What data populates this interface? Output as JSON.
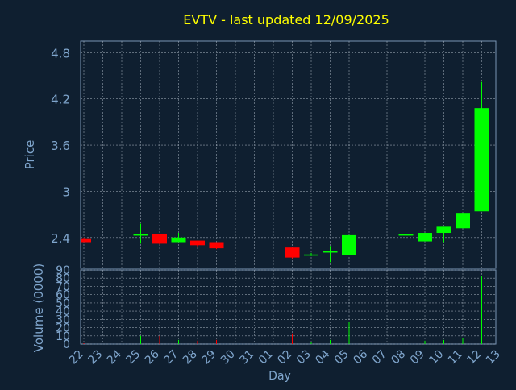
{
  "colors": {
    "background": "#0f1f30",
    "plot_background": "#0f1f30",
    "axis": "#7a95b5",
    "grid": "#c8d4e0",
    "title": "#ffff00",
    "label": "#7fa5cc",
    "up": "#00ff00",
    "down": "#ff0000"
  },
  "chart_data": {
    "type": "candlestick",
    "title": "EVTV - last updated 12/09/2025",
    "xlabel": "Day",
    "price_panel": {
      "ylabel": "Price",
      "ylim": [
        2.0,
        4.95
      ],
      "yticks": [
        "2.4",
        "3",
        "3.6",
        "4.2",
        "4.8"
      ],
      "grid": true
    },
    "volume_panel": {
      "ylabel": "Volume (0000)",
      "ylim": [
        0,
        90
      ],
      "yticks": [
        "0",
        "10",
        "20",
        "30",
        "40",
        "50",
        "60",
        "70",
        "80",
        "90"
      ],
      "grid": true
    },
    "x_tick_labels": [
      "22",
      "23",
      "24",
      "25",
      "26",
      "27",
      "28",
      "29",
      "30",
      "31",
      "01",
      "02",
      "03",
      "04",
      "05",
      "06",
      "07",
      "08",
      "09",
      "10",
      "11",
      "12",
      "13"
    ],
    "candles": [
      {
        "x": "22",
        "open": 2.39,
        "high": 2.4,
        "low": 2.34,
        "close": 2.34,
        "volume": 1
      },
      {
        "x": "25",
        "open": 2.44,
        "high": 2.58,
        "low": 2.32,
        "close": 2.44,
        "volume": 10
      },
      {
        "x": "26",
        "open": 2.45,
        "high": 2.45,
        "low": 2.31,
        "close": 2.32,
        "volume": 10
      },
      {
        "x": "27",
        "open": 2.34,
        "high": 2.46,
        "low": 2.34,
        "close": 2.4,
        "volume": 5
      },
      {
        "x": "28",
        "open": 2.36,
        "high": 2.36,
        "low": 2.28,
        "close": 2.3,
        "volume": 4
      },
      {
        "x": "29",
        "open": 2.34,
        "high": 2.34,
        "low": 2.25,
        "close": 2.26,
        "volume": 5
      },
      {
        "x": "02",
        "open": 2.27,
        "high": 2.27,
        "low": 2.13,
        "close": 2.14,
        "volume": 13
      },
      {
        "x": "03",
        "open": 2.17,
        "high": 2.2,
        "low": 2.16,
        "close": 2.18,
        "volume": 2
      },
      {
        "x": "04",
        "open": 2.22,
        "high": 2.29,
        "low": 2.08,
        "close": 2.22,
        "volume": 5
      },
      {
        "x": "05",
        "open": 2.17,
        "high": 2.43,
        "low": 2.17,
        "close": 2.43,
        "volume": 27
      },
      {
        "x": "08",
        "open": 2.44,
        "high": 2.48,
        "low": 2.29,
        "close": 2.44,
        "volume": 8
      },
      {
        "x": "09",
        "open": 2.35,
        "high": 2.46,
        "low": 2.35,
        "close": 2.46,
        "volume": 4
      },
      {
        "x": "10",
        "open": 2.46,
        "high": 2.54,
        "low": 2.34,
        "close": 2.54,
        "volume": 5
      },
      {
        "x": "11",
        "open": 2.52,
        "high": 2.72,
        "low": 2.52,
        "close": 2.72,
        "volume": 7
      },
      {
        "x": "12",
        "open": 2.74,
        "high": 4.42,
        "low": 2.74,
        "close": 4.08,
        "volume": 82
      }
    ]
  }
}
